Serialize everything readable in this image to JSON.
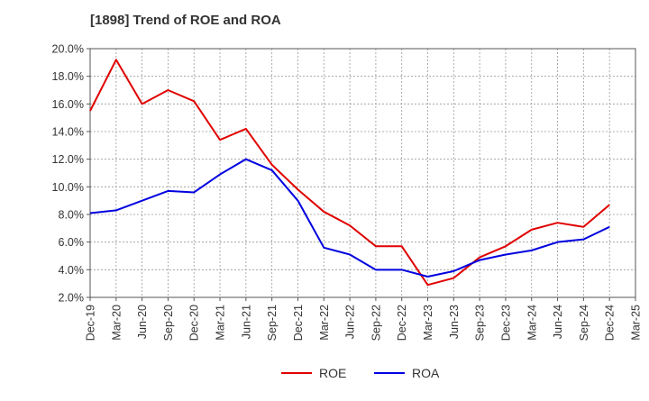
{
  "chart_data": {
    "type": "line",
    "title": "[1898]  Trend of ROE and ROA",
    "xlabel": "",
    "ylabel": "",
    "categories": [
      "Dec-19",
      "Mar-20",
      "Jun-20",
      "Sep-20",
      "Dec-20",
      "Mar-21",
      "Jun-21",
      "Sep-21",
      "Dec-21",
      "Mar-22",
      "Jun-22",
      "Sep-22",
      "Dec-22",
      "Mar-23",
      "Jun-23",
      "Sep-23",
      "Dec-23",
      "Mar-24",
      "Jun-24",
      "Sep-24",
      "Dec-24",
      "Mar-25"
    ],
    "ylim": [
      2.0,
      20.0
    ],
    "yticks": [
      2.0,
      4.0,
      6.0,
      8.0,
      10.0,
      12.0,
      14.0,
      16.0,
      18.0,
      20.0
    ],
    "ytick_labels": [
      "2.0%",
      "4.0%",
      "6.0%",
      "8.0%",
      "10.0%",
      "12.0%",
      "14.0%",
      "16.0%",
      "18.0%",
      "20.0%"
    ],
    "grid": true,
    "legend_position": "bottom",
    "series": [
      {
        "name": "ROE",
        "color": "#e00000",
        "values": [
          15.5,
          19.2,
          16.0,
          17.0,
          16.2,
          13.4,
          14.2,
          11.6,
          9.8,
          8.2,
          7.2,
          5.7,
          5.7,
          2.9,
          3.4,
          4.9,
          5.7,
          6.9,
          7.4,
          7.1,
          8.7,
          null
        ]
      },
      {
        "name": "ROA",
        "color": "#0000e0",
        "values": [
          8.1,
          8.3,
          9.0,
          9.7,
          9.6,
          10.9,
          12.0,
          11.2,
          9.0,
          5.6,
          5.1,
          4.0,
          4.0,
          3.5,
          3.9,
          4.7,
          5.1,
          5.4,
          6.0,
          6.2,
          7.1,
          null
        ]
      }
    ]
  }
}
